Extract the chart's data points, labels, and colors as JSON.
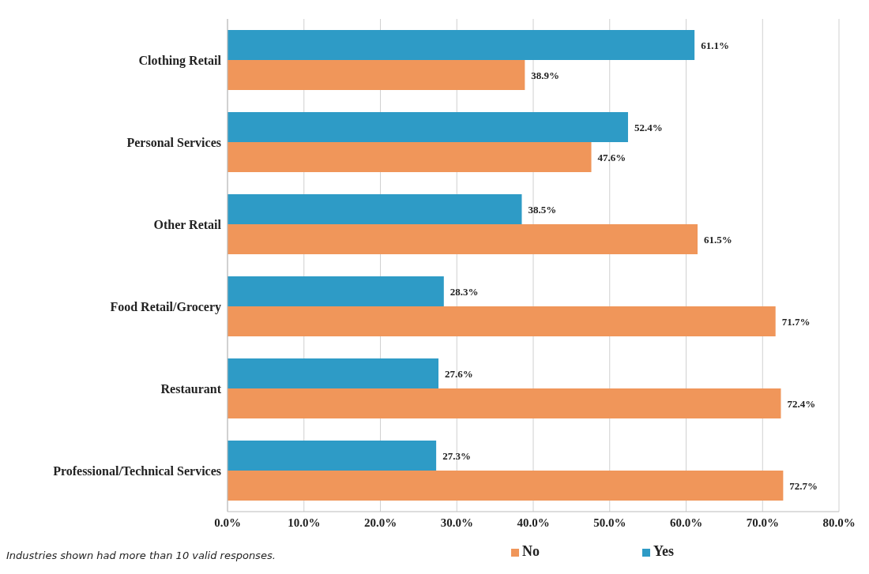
{
  "chart_data": {
    "type": "bar",
    "orientation": "horizontal",
    "categories": [
      "Clothing Retail",
      "Personal Services",
      "Other Retail",
      "Food Retail/Grocery",
      "Restaurant",
      "Professional/Technical Services"
    ],
    "series": [
      {
        "name": "Yes",
        "color": "#2e9bc6",
        "values": [
          61.1,
          52.4,
          38.5,
          28.3,
          27.6,
          27.3
        ],
        "value_labels": [
          "61.1%",
          "52.4%",
          "38.5%",
          "28.3%",
          "27.6%",
          "27.3%"
        ]
      },
      {
        "name": "No",
        "color": "#f0965a",
        "values": [
          38.9,
          47.6,
          61.5,
          71.7,
          72.4,
          72.7
        ],
        "value_labels": [
          "38.9%",
          "47.6%",
          "61.5%",
          "71.7%",
          "72.4%",
          "72.7%"
        ]
      }
    ],
    "xlim": [
      0,
      80
    ],
    "xticks": [
      {
        "value": 0,
        "label": "0.0%"
      },
      {
        "value": 10,
        "label": "10.0%"
      },
      {
        "value": 20,
        "label": "20.0%"
      },
      {
        "value": 30,
        "label": "30.0%"
      },
      {
        "value": 40,
        "label": "40.0%"
      },
      {
        "value": 50,
        "label": "50.0%"
      },
      {
        "value": 60,
        "label": "60.0%"
      },
      {
        "value": 70,
        "label": "70.0%"
      },
      {
        "value": 80,
        "label": "80.0%"
      }
    ],
    "grid": "x",
    "legend": "bottom",
    "annotations": [
      "Industries shown had more than 10 valid responses."
    ]
  }
}
